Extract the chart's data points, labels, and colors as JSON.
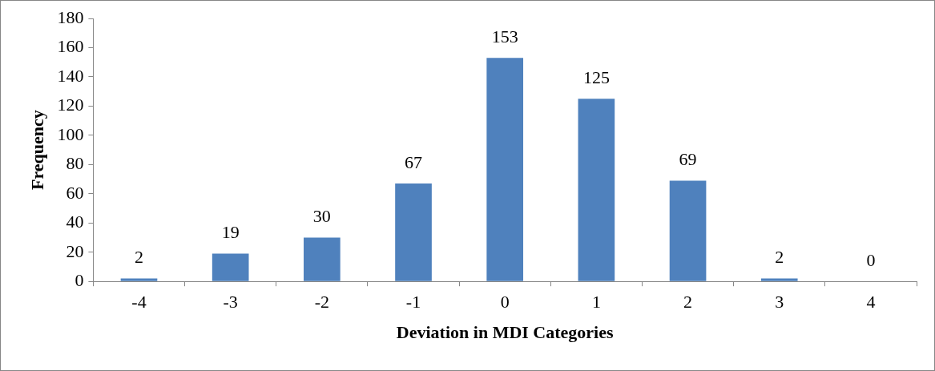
{
  "chart_data": {
    "type": "bar",
    "xlabel": "Deviation in MDI Categories",
    "ylabel": "Frequency",
    "categories": [
      "-4",
      "-3",
      "-2",
      "-1",
      "0",
      "1",
      "2",
      "3",
      "4"
    ],
    "values": [
      2,
      19,
      30,
      67,
      153,
      125,
      69,
      2,
      0
    ],
    "color": "#4f81bd",
    "ylim": [
      0,
      180
    ],
    "yticks": [
      0,
      20,
      40,
      60,
      80,
      100,
      120,
      140,
      160,
      180
    ],
    "grid": false,
    "legend": false,
    "data_labels": true
  }
}
